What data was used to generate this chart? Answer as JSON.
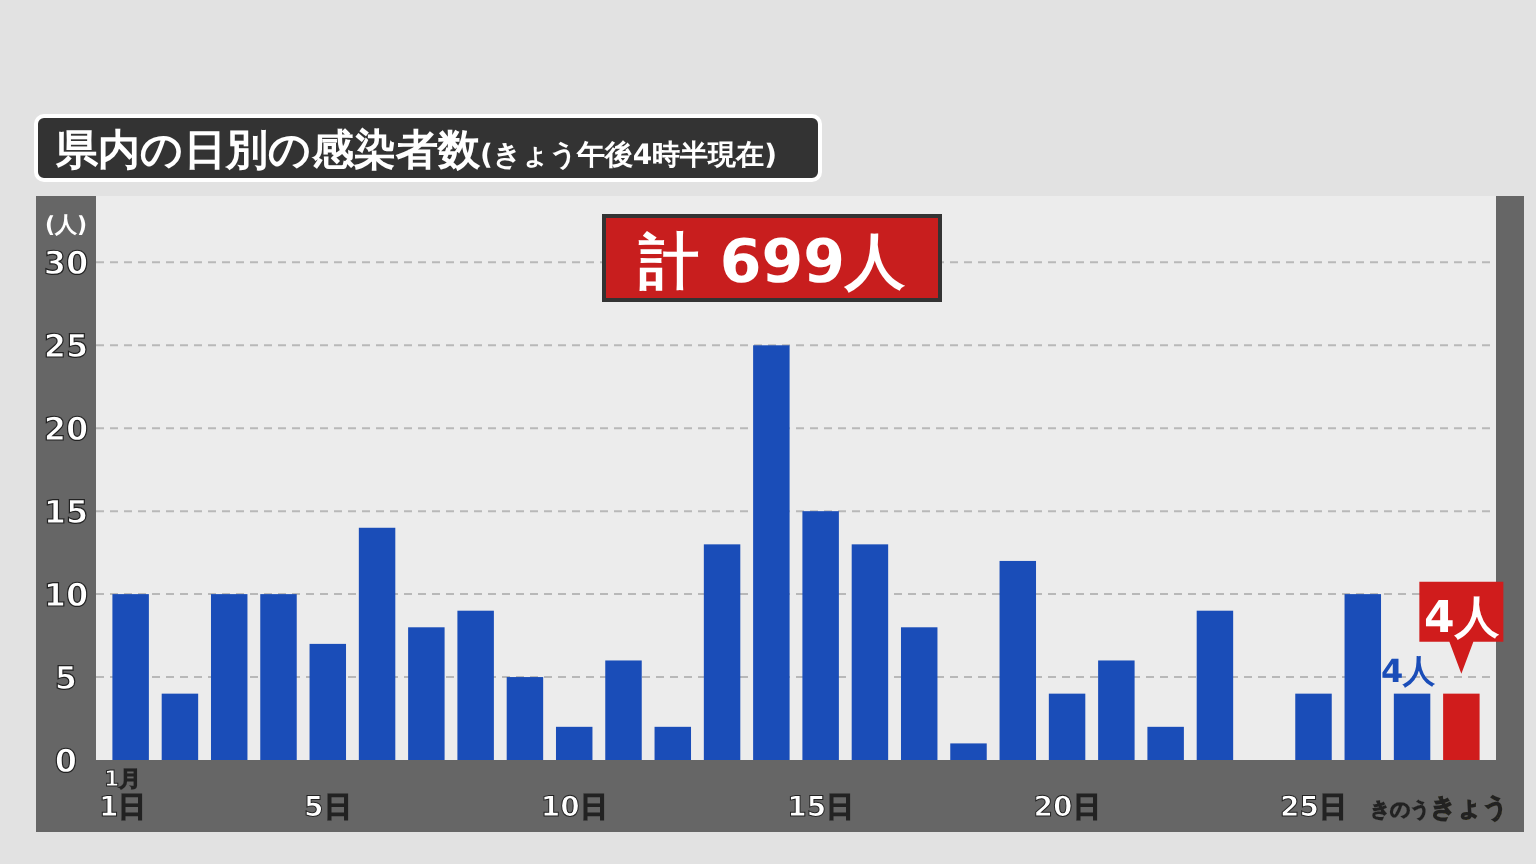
{
  "chart_data": {
    "type": "bar",
    "title": "県内の日別の感染者数(きょう午後4時半現在)",
    "ylabel": "(人)",
    "categories": [
      "1月\n1日",
      null,
      null,
      null,
      "5日",
      null,
      null,
      null,
      null,
      "10日",
      null,
      null,
      null,
      null,
      "15日",
      null,
      null,
      null,
      null,
      "20日",
      null,
      null,
      null,
      null,
      "25日",
      null,
      "きのう",
      "きょう"
    ],
    "values": [
      10,
      4,
      10,
      10,
      7,
      14,
      8,
      9,
      5,
      2,
      6,
      2,
      13,
      25,
      15,
      13,
      8,
      1,
      12,
      4,
      6,
      2,
      9,
      0,
      4,
      10,
      4,
      4
    ],
    "colors": [
      "#1a4db8",
      "#1a4db8",
      "#1a4db8",
      "#1a4db8",
      "#1a4db8",
      "#1a4db8",
      "#1a4db8",
      "#1a4db8",
      "#1a4db8",
      "#1a4db8",
      "#1a4db8",
      "#1a4db8",
      "#1a4db8",
      "#1a4db8",
      "#1a4db8",
      "#1a4db8",
      "#1a4db8",
      "#1a4db8",
      "#1a4db8",
      "#1a4db8",
      "#1a4db8",
      "#1a4db8",
      "#1a4db8",
      "#1a4db8",
      "#1a4db8",
      "#1a4db8",
      "#1a4db8",
      "#d01c1c"
    ],
    "ylim": [
      0,
      34
    ],
    "yticks": [
      0,
      5,
      10,
      15,
      20,
      25,
      30
    ],
    "grid": "y",
    "annotations": [
      "計 699人",
      {
        "text": "4人",
        "x": "きのう",
        "y": 4
      },
      {
        "text": "4人",
        "x": "きょう",
        "y": 4
      }
    ]
  }
}
